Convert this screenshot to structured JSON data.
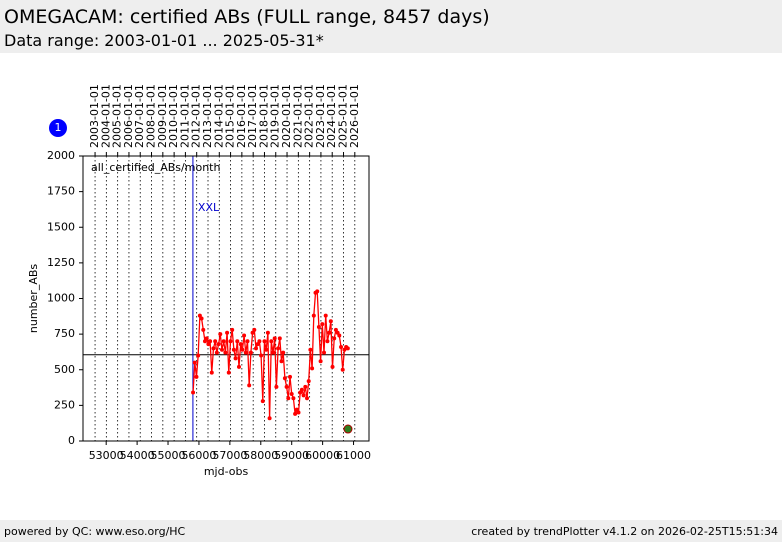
{
  "header": {
    "title": "OMEGACAM: certified ABs (FULL range, 8457 days)",
    "subtitle": "Data range: 2003-01-01 ... 2025-05-31*"
  },
  "footer": {
    "left": "powered by QC: www.eso.org/HC",
    "right": "created by trendPlotter v4.1.2 on 2026-02-25T15:51:34"
  },
  "badge": "1",
  "chart_data": {
    "type": "line",
    "xlabel": "mjd-obs",
    "ylabel": "number_ABs",
    "annotation": "all_certified_ABs/month",
    "marker": {
      "label": "XXL",
      "x": 55805,
      "color": "#0000cc"
    },
    "reference_line": 605,
    "xlim": [
      52250,
      61500
    ],
    "ylim": [
      0,
      2000
    ],
    "xticks": [
      53000,
      54000,
      55000,
      56000,
      57000,
      58000,
      59000,
      60000,
      61000
    ],
    "yticks": [
      0,
      250,
      500,
      750,
      1000,
      1250,
      1500,
      1750,
      2000
    ],
    "x2ticks": [
      {
        "value": 52640,
        "label": "2003-01-01"
      },
      {
        "value": 53005,
        "label": "2004-01-01"
      },
      {
        "value": 53371,
        "label": "2005-01-01"
      },
      {
        "value": 53736,
        "label": "2006-01-01"
      },
      {
        "value": 54101,
        "label": "2007-01-01"
      },
      {
        "value": 54466,
        "label": "2008-01-01"
      },
      {
        "value": 54832,
        "label": "2009-01-01"
      },
      {
        "value": 55197,
        "label": "2010-01-01"
      },
      {
        "value": 55562,
        "label": "2011-01-01"
      },
      {
        "value": 55927,
        "label": "2012-01-01"
      },
      {
        "value": 56293,
        "label": "2013-01-01"
      },
      {
        "value": 56658,
        "label": "2014-01-01"
      },
      {
        "value": 57023,
        "label": "2015-01-01"
      },
      {
        "value": 57388,
        "label": "2016-01-01"
      },
      {
        "value": 57754,
        "label": "2017-01-01"
      },
      {
        "value": 58119,
        "label": "2018-01-01"
      },
      {
        "value": 58484,
        "label": "2019-01-01"
      },
      {
        "value": 58849,
        "label": "2020-01-01"
      },
      {
        "value": 59215,
        "label": "2021-01-01"
      },
      {
        "value": 59580,
        "label": "2022-01-01"
      },
      {
        "value": 59945,
        "label": "2023-01-01"
      },
      {
        "value": 60310,
        "label": "2024-01-01"
      },
      {
        "value": 60676,
        "label": "2025-01-01"
      },
      {
        "value": 61041,
        "label": "2026-01-01"
      }
    ],
    "series": [
      {
        "color": "#ff0000",
        "x": [
          55810,
          55865,
          55920,
          55975,
          56030,
          56085,
          56140,
          56195,
          56250,
          56305,
          56360,
          56415,
          56470,
          56525,
          56580,
          56635,
          56690,
          56745,
          56800,
          56855,
          56910,
          56965,
          57020,
          57075,
          57130,
          57185,
          57240,
          57295,
          57350,
          57405,
          57460,
          57515,
          57570,
          57625,
          57680,
          57735,
          57790,
          57845,
          57900,
          57955,
          58010,
          58065,
          58120,
          58175,
          58230,
          58285,
          58340,
          58395,
          58450,
          58505,
          58560,
          58615,
          58670,
          58725,
          58780,
          58835,
          58890,
          58945,
          59000,
          59055,
          59110,
          59165,
          59220,
          59275,
          59330,
          59385,
          59440,
          59495,
          59550,
          59605,
          59660,
          59715,
          59770,
          59825,
          59880,
          59935,
          59990,
          60045,
          60100,
          60155,
          60210,
          60265,
          60320,
          60375,
          60430,
          60485,
          60540,
          60595,
          60650,
          60705,
          60760,
          60815
        ],
        "values": [
          340,
          550,
          450,
          600,
          880,
          860,
          780,
          700,
          720,
          680,
          700,
          480,
          650,
          700,
          620,
          680,
          750,
          640,
          700,
          620,
          760,
          480,
          700,
          780,
          640,
          580,
          700,
          520,
          680,
          640,
          740,
          620,
          700,
          390,
          620,
          760,
          780,
          650,
          680,
          700,
          600,
          280,
          700,
          640,
          760,
          160,
          700,
          620,
          720,
          380,
          650,
          720,
          560,
          620,
          440,
          380,
          300,
          450,
          330,
          300,
          190,
          220,
          200,
          340,
          360,
          320,
          380,
          300,
          420,
          640,
          510,
          880,
          1040,
          1050,
          800,
          560,
          820,
          620,
          880,
          700,
          760,
          840,
          520,
          720,
          780,
          760,
          740,
          660,
          500,
          640,
          660,
          650
        ]
      },
      {
        "color": "#2e7d1e",
        "x": [
          60820
        ],
        "values": [
          84
        ]
      }
    ]
  }
}
